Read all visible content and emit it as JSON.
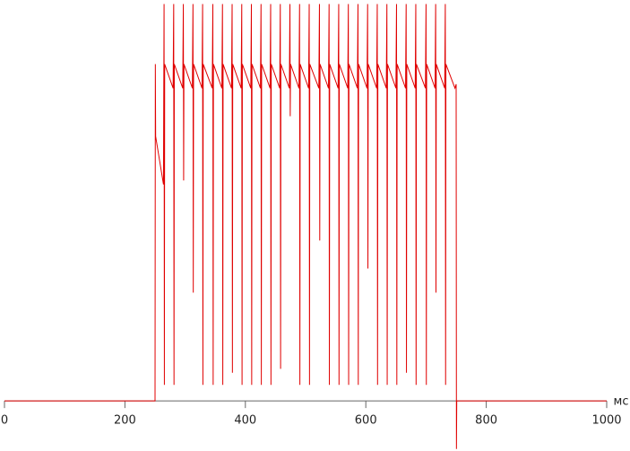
{
  "chart_data": {
    "type": "line",
    "xlabel": "мс",
    "xlim": [
      0,
      1000
    ],
    "xticks": [
      0,
      200,
      400,
      600,
      800,
      1000
    ],
    "ylim": [
      -12.5,
      100
    ],
    "series": [
      {
        "color": "#e00000",
        "x": [
          0,
          250,
          250.5,
          251,
          264,
          265,
          265.5,
          266,
          280,
          281,
          281.5,
          282,
          296,
          297,
          297.5,
          298,
          312,
          313,
          313.5,
          314,
          328,
          329,
          329.5,
          330,
          345,
          346,
          346.5,
          347,
          361,
          362,
          362.5,
          363,
          377,
          378,
          378.5,
          379,
          393,
          394,
          394.5,
          395,
          409,
          410,
          410.5,
          411,
          425,
          426,
          426.5,
          427,
          441,
          442,
          442.5,
          443,
          457,
          458,
          458.5,
          459,
          473,
          474,
          474.5,
          475,
          489,
          490,
          490.5,
          491,
          505,
          506,
          506.5,
          507,
          522,
          523,
          523.5,
          524,
          538,
          539,
          539.5,
          540,
          554,
          555,
          555.5,
          556,
          570,
          571,
          571.5,
          572,
          586,
          587,
          587.5,
          588,
          602,
          603,
          603.5,
          604,
          618,
          619,
          619.5,
          620,
          634,
          635,
          635.5,
          636,
          650,
          651,
          651.5,
          652,
          666,
          667,
          667.5,
          668,
          682,
          683,
          683.5,
          684,
          699,
          700,
          700.5,
          701,
          715,
          716,
          716.5,
          717,
          731,
          732,
          732.5,
          733,
          748,
          750,
          750.5,
          751,
          1000
        ],
        "values": [
          0,
          0,
          84,
          66,
          54,
          99,
          4,
          84,
          78,
          99,
          4,
          84,
          78,
          99,
          55,
          84,
          78,
          99,
          27,
          84,
          78,
          99,
          4,
          84,
          78,
          99,
          4,
          84,
          78,
          99,
          4,
          84,
          78,
          99,
          7,
          84,
          78,
          99,
          4,
          84,
          78,
          99,
          4,
          84,
          78,
          99,
          4,
          84,
          78,
          99,
          4,
          84,
          78,
          99,
          8,
          84,
          78,
          99,
          71,
          84,
          78,
          99,
          4,
          84,
          78,
          99,
          4,
          84,
          78,
          99,
          40,
          84,
          78,
          99,
          4,
          84,
          78,
          99,
          4,
          84,
          78,
          99,
          4,
          84,
          78,
          99,
          4,
          84,
          78,
          99,
          33,
          84,
          78,
          99,
          4,
          84,
          78,
          99,
          4,
          84,
          78,
          99,
          4,
          84,
          78,
          99,
          7,
          84,
          78,
          99,
          4,
          84,
          78,
          99,
          4,
          84,
          78,
          99,
          27,
          84,
          78,
          99,
          4,
          84,
          78,
          79,
          -12,
          0,
          0
        ]
      }
    ]
  }
}
